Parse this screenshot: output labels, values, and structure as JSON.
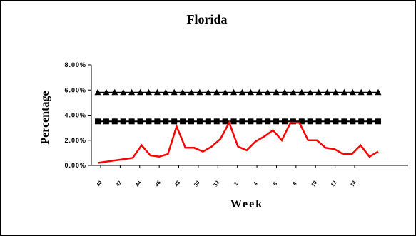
{
  "chart_data": {
    "type": "line",
    "title": "Florida",
    "xlabel": "Week",
    "ylabel": "Percentage",
    "ylim": [
      0,
      0.08
    ],
    "y_ticks": [
      "0.00%",
      "2.00%",
      "4.00%",
      "6.00%",
      "8.00%"
    ],
    "y_tick_values": [
      0,
      0.02,
      0.04,
      0.06,
      0.08
    ],
    "x_tick_labels": [
      "40",
      "42",
      "44",
      "46",
      "48",
      "50",
      "52",
      "2",
      "4",
      "6",
      "8",
      "10",
      "12",
      "14"
    ],
    "grid": false,
    "legend": "none",
    "series": [
      {
        "marker": "triangle",
        "color": "#000000",
        "values": [
          0.058,
          0.058,
          0.058,
          0.058,
          0.058,
          0.058,
          0.058,
          0.058,
          0.058,
          0.058,
          0.058,
          0.058,
          0.058,
          0.058,
          0.058,
          0.058,
          0.058,
          0.058,
          0.058,
          0.058,
          0.058,
          0.058,
          0.058,
          0.058,
          0.058,
          0.058,
          0.058,
          0.058,
          0.058,
          0.058,
          0.058,
          0.058,
          0.058,
          0.058
        ]
      },
      {
        "marker": "square",
        "color": "#000000",
        "values": [
          0.035,
          0.035,
          0.035,
          0.035,
          0.035,
          0.035,
          0.035,
          0.035,
          0.035,
          0.035,
          0.035,
          0.035,
          0.035,
          0.035,
          0.035,
          0.035,
          0.035,
          0.035,
          0.035,
          0.035,
          0.035,
          0.035,
          0.035,
          0.035,
          0.035,
          0.035,
          0.035,
          0.035,
          0.035,
          0.035,
          0.035,
          0.035,
          0.035,
          0.035
        ]
      },
      {
        "marker": "none",
        "color": "#ff0000",
        "values": [
          0.002,
          0.003,
          0.004,
          0.005,
          0.006,
          0.016,
          0.008,
          0.007,
          0.009,
          0.031,
          0.014,
          0.014,
          0.011,
          0.015,
          0.021,
          0.034,
          0.015,
          0.012,
          0.019,
          0.023,
          0.028,
          0.02,
          0.034,
          0.034,
          0.02,
          0.02,
          0.014,
          0.013,
          0.009,
          0.009,
          0.016,
          0.007,
          0.011
        ]
      }
    ]
  }
}
